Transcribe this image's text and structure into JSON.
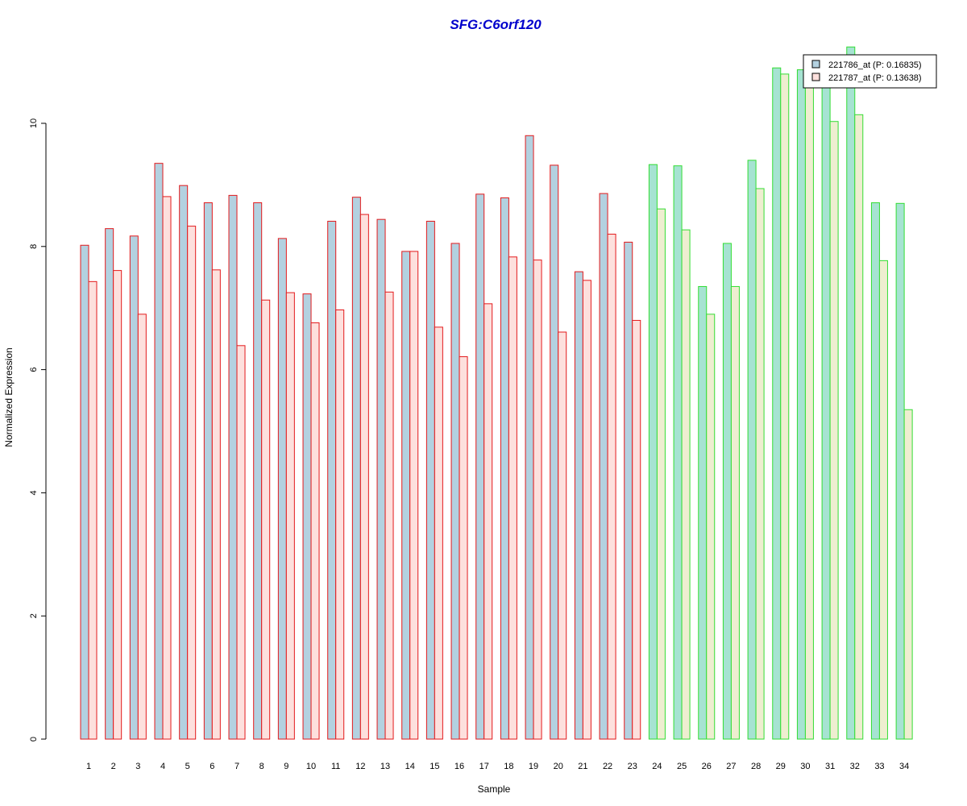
{
  "chart_data": {
    "type": "bar",
    "title": "SFG:C6orf120",
    "xlabel": "Sample",
    "ylabel": "Normalized Expression",
    "ylim": [
      0,
      11.4
    ],
    "yticks": [
      0,
      2,
      4,
      6,
      8,
      10
    ],
    "grid": false,
    "legend_position": "top-right",
    "categories": [
      "1",
      "2",
      "3",
      "4",
      "5",
      "6",
      "7",
      "8",
      "9",
      "10",
      "11",
      "12",
      "13",
      "14",
      "15",
      "16",
      "17",
      "18",
      "19",
      "20",
      "21",
      "22",
      "23",
      "24",
      "25",
      "26",
      "27",
      "28",
      "29",
      "30",
      "31",
      "32",
      "33",
      "34"
    ],
    "group_split_after_index": 22,
    "series": [
      {
        "name": "221786_at (P: 0.16835)",
        "values": [
          8.02,
          8.29,
          8.17,
          9.35,
          8.99,
          8.71,
          8.83,
          8.71,
          8.13,
          7.23,
          8.41,
          8.8,
          8.44,
          7.92,
          8.41,
          8.05,
          8.85,
          8.79,
          9.8,
          9.32,
          7.59,
          8.86,
          8.07,
          9.33,
          9.31,
          7.35,
          8.05,
          9.4,
          10.9,
          10.87,
          10.67,
          11.24,
          8.71,
          8.7
        ]
      },
      {
        "name": "221787_at (P: 0.13638)",
        "values": [
          7.43,
          7.61,
          6.9,
          8.81,
          8.33,
          7.62,
          6.39,
          7.13,
          7.25,
          6.76,
          6.97,
          8.52,
          7.26,
          7.92,
          6.69,
          6.21,
          7.07,
          7.83,
          7.78,
          6.61,
          7.45,
          8.2,
          6.8,
          8.61,
          8.27,
          6.9,
          7.35,
          8.94,
          10.8,
          10.8,
          10.03,
          10.14,
          7.77,
          5.35
        ]
      }
    ],
    "colors": {
      "group1_border": "#e31a1c",
      "group2_border": "#33dd33",
      "series1_fill_group1": "#b3d1e0",
      "series2_fill_group1": "#fde0dd",
      "series1_fill_group2": "#a6e3d2",
      "series2_fill_group2": "#eeeed0",
      "legend_swatch_1": "#b3d1e0",
      "legend_swatch_2": "#fde0dd"
    }
  }
}
